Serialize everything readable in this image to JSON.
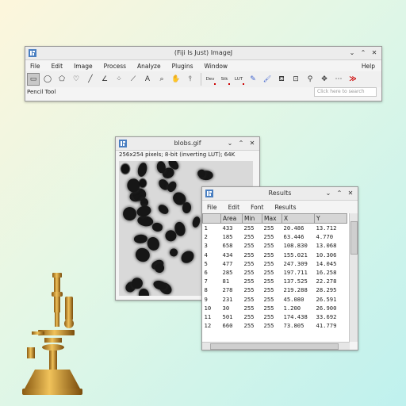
{
  "main_window": {
    "title": "(Fiji Is Just) ImageJ",
    "menu": [
      "File",
      "Edit",
      "Image",
      "Process",
      "Analyze",
      "Plugins",
      "Window"
    ],
    "help": "Help",
    "tools": [
      {
        "icon": "rectangle-icon",
        "glyph": "▭",
        "selected": true
      },
      {
        "icon": "oval-icon",
        "glyph": "◯"
      },
      {
        "icon": "polygon-icon",
        "glyph": "⬠"
      },
      {
        "icon": "freehand-icon",
        "glyph": "♡"
      },
      {
        "icon": "line-icon",
        "glyph": "╱"
      },
      {
        "icon": "angle-icon",
        "glyph": "∠"
      },
      {
        "icon": "multipoint-icon",
        "glyph": "⁘"
      },
      {
        "icon": "wand-icon",
        "glyph": "⟋"
      },
      {
        "icon": "text-icon",
        "glyph": "A"
      },
      {
        "icon": "magnifier-icon",
        "glyph": "⌕"
      },
      {
        "icon": "hand-icon",
        "glyph": "✋"
      },
      {
        "icon": "dropper-icon",
        "glyph": "⫯"
      }
    ],
    "tools2": [
      {
        "icon": "dev-menu-icon",
        "glyph": "Dev"
      },
      {
        "icon": "stk-menu-icon",
        "glyph": "Stk"
      },
      {
        "icon": "lut-menu-icon",
        "glyph": "LUT"
      },
      {
        "icon": "pencil-icon",
        "glyph": "✎"
      },
      {
        "icon": "brush-icon",
        "glyph": "🖌"
      },
      {
        "icon": "flood-fill-icon",
        "glyph": "⛾"
      },
      {
        "icon": "zoom-tool-icon",
        "glyph": "⊡"
      },
      {
        "icon": "search-tool-icon",
        "glyph": "⚲"
      },
      {
        "icon": "move-icon",
        "glyph": "✥"
      },
      {
        "icon": "commands-icon",
        "glyph": "⋯"
      },
      {
        "icon": "more-tools-icon",
        "glyph": "≫"
      }
    ],
    "status": "Pencil Tool",
    "search_placeholder": "Click here to search"
  },
  "image_window": {
    "title": "blobs.gif",
    "info": "256x254 pixels; 8-bit (inverting LUT); 64K"
  },
  "results_window": {
    "title": "Results",
    "menu": [
      "File",
      "Edit",
      "Font",
      "Results"
    ],
    "columns": [
      "",
      "Area",
      "Min",
      "Max",
      "X",
      "Y"
    ],
    "rows": [
      [
        "1",
        "433",
        "255",
        "255",
        "20.486",
        "13.712"
      ],
      [
        "2",
        "185",
        "255",
        "255",
        "63.446",
        "4.770"
      ],
      [
        "3",
        "658",
        "255",
        "255",
        "108.830",
        "13.068"
      ],
      [
        "4",
        "434",
        "255",
        "255",
        "155.021",
        "10.306"
      ],
      [
        "5",
        "477",
        "255",
        "255",
        "247.309",
        "14.045"
      ],
      [
        "6",
        "285",
        "255",
        "255",
        "197.711",
        "16.258"
      ],
      [
        "7",
        "81",
        "255",
        "255",
        "137.525",
        "22.278"
      ],
      [
        "8",
        "278",
        "255",
        "255",
        "219.288",
        "28.295"
      ],
      [
        "9",
        "231",
        "255",
        "255",
        "45.080",
        "26.591"
      ],
      [
        "10",
        "30",
        "255",
        "255",
        "1.200",
        "26.900"
      ],
      [
        "11",
        "501",
        "255",
        "255",
        "174.438",
        "33.692"
      ],
      [
        "12",
        "660",
        "255",
        "255",
        "73.805",
        "41.779"
      ]
    ]
  },
  "colors": {
    "accent_red": "#cc0000",
    "icon_blue": "#4a7fc1"
  }
}
